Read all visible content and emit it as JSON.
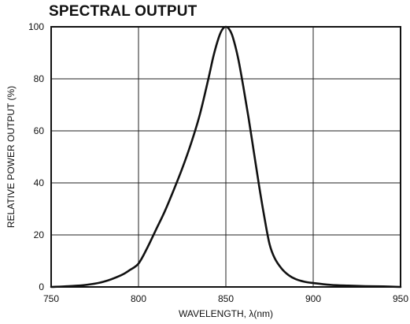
{
  "chart_data": {
    "type": "line",
    "title": "SPECTRAL OUTPUT",
    "xlabel": "WAVELENGTH, λ(nm)",
    "ylabel": "RELATIVE POWER OUTPUT (%)",
    "xlim": [
      750,
      950
    ],
    "ylim": [
      0,
      100
    ],
    "xticks": [
      750,
      800,
      850,
      900,
      950
    ],
    "yticks": [
      0,
      20,
      40,
      60,
      80,
      100
    ],
    "grid": true,
    "colors": {
      "line": "#111111",
      "grid": "#222222",
      "background": "#ffffff"
    },
    "series": [
      {
        "x": [
          750,
          760,
          770,
          780,
          790,
          795,
          800,
          805,
          810,
          815,
          820,
          825,
          830,
          835,
          840,
          843,
          846,
          848,
          850,
          852,
          854,
          857,
          860,
          863,
          866,
          869,
          872,
          875,
          878,
          882,
          886,
          890,
          895,
          900,
          910,
          920,
          930,
          940,
          950
        ],
        "y": [
          0,
          0.3,
          0.8,
          2,
          4.5,
          6.5,
          9,
          15,
          22,
          29,
          37,
          45.5,
          55,
          66,
          80,
          89,
          96,
          99,
          100,
          99,
          96,
          88,
          77,
          65,
          52,
          39,
          27,
          16.5,
          11,
          7,
          4.5,
          3,
          2,
          1.5,
          0.8,
          0.5,
          0.3,
          0.2,
          0
        ]
      }
    ]
  }
}
